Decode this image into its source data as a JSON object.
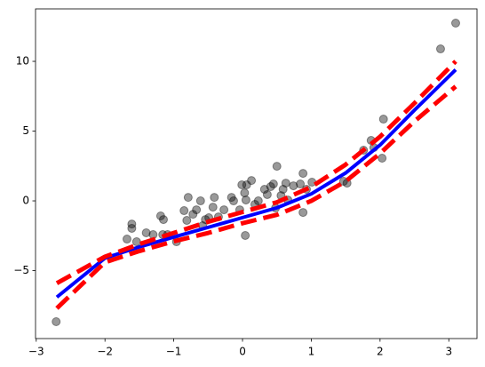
{
  "chart_data": {
    "type": "scatter",
    "x": [
      -2.71,
      -1.68,
      -1.61,
      -1.61,
      -1.54,
      -1.4,
      -1.3,
      -1.19,
      -1.15,
      -1.16,
      -1.09,
      -0.96,
      -0.85,
      -0.81,
      -0.79,
      -0.72,
      -0.67,
      -0.61,
      -0.58,
      -0.54,
      -0.49,
      -0.43,
      -0.41,
      -0.35,
      -0.27,
      -0.16,
      -0.13,
      -0.04,
      -0.01,
      0.03,
      0.04,
      0.05,
      0.06,
      0.13,
      0.18,
      0.23,
      0.32,
      0.36,
      0.41,
      0.45,
      0.5,
      0.48,
      0.56,
      0.59,
      0.63,
      0.66,
      0.74,
      0.84,
      0.88,
      0.88,
      0.93,
      1.01,
      1.47,
      1.52,
      1.76,
      1.87,
      1.91,
      2.03,
      2.05,
      2.88,
      3.1
    ],
    "values": [
      -8.66,
      -2.74,
      -1.66,
      -1.97,
      -2.93,
      -2.29,
      -2.42,
      -1.08,
      -1.34,
      -2.42,
      -2.42,
      -2.93,
      -0.7,
      -1.4,
      0.25,
      -0.96,
      -0.64,
      0,
      -1.78,
      -1.34,
      -1.21,
      -0.45,
      0.25,
      -1.15,
      -0.64,
      0.25,
      0,
      -0.64,
      1.15,
      0.57,
      -2.48,
      0.06,
      1.15,
      1.46,
      -0.25,
      0,
      0.83,
      0.45,
      1.02,
      1.21,
      2.48,
      -0.51,
      0.38,
      0.83,
      1.27,
      0.06,
      1.08,
      1.21,
      1.97,
      -0.83,
      0.83,
      1.34,
      1.4,
      1.27,
      3.63,
      4.33,
      3.82,
      3.06,
      5.86,
      10.89,
      12.74
    ],
    "color": "#000000",
    "alpha": 0.4,
    "lines": [
      {
        "color": "#0000ff",
        "dashed": false,
        "x": [
          -2.7,
          -2,
          -1.5,
          -1,
          -0.5,
          0,
          0.5,
          1,
          1.5,
          2,
          2.5,
          3.1
        ],
        "values": [
          -6.9,
          -4.1,
          -3.3,
          -2.6,
          -1.9,
          -1.2,
          -0.5,
          0.5,
          2.0,
          4.0,
          6.5,
          9.4
        ]
      },
      {
        "color": "#ff0000",
        "dashed": true,
        "x": [
          -2.7,
          -2,
          -1.5,
          -1,
          -0.5,
          0,
          0.5,
          1,
          1.5,
          2,
          2.5,
          3.1
        ],
        "values": [
          -5.9,
          -4.0,
          -3.1,
          -2.3,
          -1.5,
          -0.8,
          -0.1,
          1.0,
          2.6,
          4.6,
          7.0,
          10.0
        ]
      },
      {
        "color": "#ff0000",
        "dashed": true,
        "x": [
          -2.7,
          -2,
          -1.5,
          -1,
          -0.5,
          0,
          0.5,
          1,
          1.5,
          2,
          2.5,
          3.1
        ],
        "values": [
          -7.7,
          -4.4,
          -3.6,
          -2.9,
          -2.3,
          -1.6,
          -1.0,
          0.0,
          1.4,
          3.4,
          5.7,
          8.2
        ]
      }
    ],
    "xlim": [
      -3.01,
      3.41
    ],
    "ylim": [
      -9.87,
      13.76
    ],
    "xticks": [
      {
        "value": -3,
        "label": "−3"
      },
      {
        "value": -2,
        "label": "−2"
      },
      {
        "value": -1,
        "label": "−1"
      },
      0,
      1,
      2,
      3
    ],
    "yticks": [
      {
        "value": -5,
        "label": "−5"
      },
      0,
      5,
      10
    ]
  }
}
